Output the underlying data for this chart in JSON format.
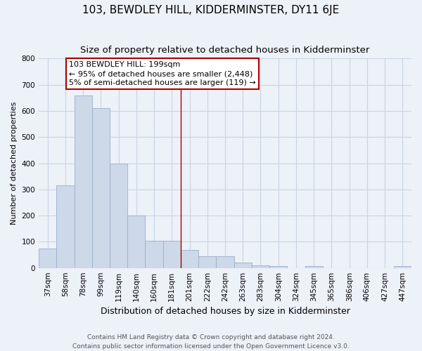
{
  "title": "103, BEWDLEY HILL, KIDDERMINSTER, DY11 6JE",
  "subtitle": "Size of property relative to detached houses in Kidderminster",
  "xlabel": "Distribution of detached houses by size in Kidderminster",
  "ylabel": "Number of detached properties",
  "categories": [
    "37sqm",
    "58sqm",
    "78sqm",
    "99sqm",
    "119sqm",
    "140sqm",
    "160sqm",
    "181sqm",
    "201sqm",
    "222sqm",
    "242sqm",
    "263sqm",
    "283sqm",
    "304sqm",
    "324sqm",
    "345sqm",
    "365sqm",
    "386sqm",
    "406sqm",
    "427sqm",
    "447sqm"
  ],
  "values": [
    75,
    315,
    660,
    610,
    400,
    200,
    105,
    105,
    70,
    45,
    45,
    20,
    10,
    8,
    0,
    8,
    0,
    0,
    0,
    0,
    8
  ],
  "bar_color": "#cdd8e8",
  "bar_edge_color": "#9ab0cc",
  "grid_color": "#c8d4e4",
  "background_color": "#edf1f8",
  "vline_color": "#aa0000",
  "annotation_box_text": "103 BEWDLEY HILL: 199sqm\n← 95% of detached houses are smaller (2,448)\n5% of semi-detached houses are larger (119) →",
  "annotation_box_color": "#aa0000",
  "annotation_box_bg": "#ffffff",
  "footnote": "Contains HM Land Registry data © Crown copyright and database right 2024.\nContains public sector information licensed under the Open Government Licence v3.0.",
  "ylim": [
    0,
    800
  ],
  "yticks": [
    0,
    100,
    200,
    300,
    400,
    500,
    600,
    700,
    800
  ],
  "title_fontsize": 11,
  "subtitle_fontsize": 9.5,
  "xlabel_fontsize": 9,
  "ylabel_fontsize": 8,
  "tick_fontsize": 7.5,
  "footnote_fontsize": 6.5,
  "ann_fontsize": 8
}
